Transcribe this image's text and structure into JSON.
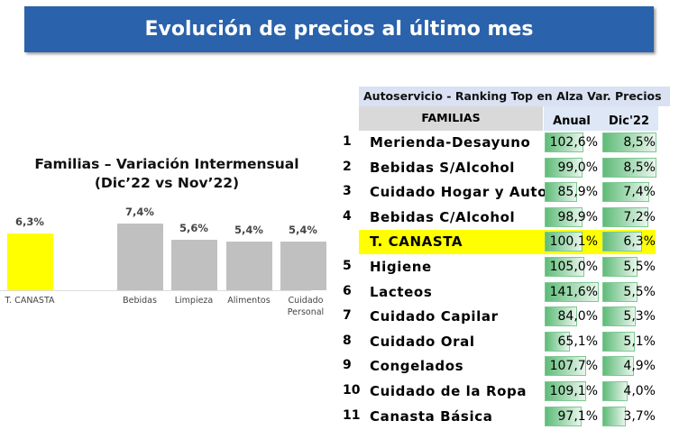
{
  "title": "Evolución de precios al último mes",
  "chart_data": {
    "type": "bar",
    "title": "Familias – Variación Intermensual",
    "subtitle": "(Dic’22 vs Nov’22)",
    "categories": [
      "T. CANASTA",
      "Bebidas",
      "Limpieza",
      "Alimentos",
      "Cuidado Personal"
    ],
    "values": [
      6.3,
      7.4,
      5.6,
      5.4,
      5.4
    ],
    "labels": [
      "6,3%",
      "7,4%",
      "5,6%",
      "5,4%",
      "5,4%"
    ],
    "highlight_color": "#ffff00",
    "bar_color": "#c0c0c0"
  },
  "table": {
    "title": "Autoservicio - Ranking Top en Alza Var. Precios",
    "col_familias": "FAMILIAS",
    "col_anual": "Anual",
    "col_dic": "Dic'22",
    "rows": [
      {
        "num": "1",
        "name": "Merienda-Desayuno",
        "anual": 102.6,
        "anual_label": "102,6%",
        "dic": 8.5,
        "dic_label": "8,5%"
      },
      {
        "num": "2",
        "name": "Bebidas S/Alcohol",
        "anual": 99.0,
        "anual_label": "99,0%",
        "dic": 8.5,
        "dic_label": "8,5%"
      },
      {
        "num": "3",
        "name": "Cuidado Hogar y Auto",
        "anual": 85.9,
        "anual_label": "85,9%",
        "dic": 7.4,
        "dic_label": "7,4%"
      },
      {
        "num": "4",
        "name": "Bebidas C/Alcohol",
        "anual": 98.9,
        "anual_label": "98,9%",
        "dic": 7.2,
        "dic_label": "7,2%"
      },
      {
        "num": "",
        "name": "T. CANASTA",
        "anual": 100.1,
        "anual_label": "100,1%",
        "dic": 6.3,
        "dic_label": "6,3%",
        "highlight": true
      },
      {
        "num": "5",
        "name": "Higiene",
        "anual": 105.0,
        "anual_label": "105,0%",
        "dic": 5.5,
        "dic_label": "5,5%"
      },
      {
        "num": "6",
        "name": "Lacteos",
        "anual": 141.6,
        "anual_label": "141,6%",
        "dic": 5.5,
        "dic_label": "5,5%"
      },
      {
        "num": "7",
        "name": "Cuidado Capilar",
        "anual": 84.0,
        "anual_label": "84,0%",
        "dic": 5.3,
        "dic_label": "5,3%"
      },
      {
        "num": "8",
        "name": "Cuidado Oral",
        "anual": 65.1,
        "anual_label": "65,1%",
        "dic": 5.1,
        "dic_label": "5,1%"
      },
      {
        "num": "9",
        "name": "Congelados",
        "anual": 107.7,
        "anual_label": "107,7%",
        "dic": 4.9,
        "dic_label": "4,9%"
      },
      {
        "num": "10",
        "name": "Cuidado de la Ropa",
        "anual": 109.1,
        "anual_label": "109,1%",
        "dic": 4.0,
        "dic_label": "4,0%"
      },
      {
        "num": "11",
        "name": "Canasta Básica",
        "anual": 97.1,
        "anual_label": "97,1%",
        "dic": 3.7,
        "dic_label": "3,7%"
      }
    ]
  }
}
